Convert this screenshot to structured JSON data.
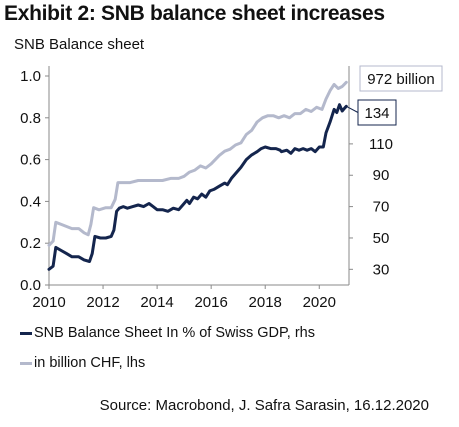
{
  "exhibit_title": "Exhibit 2: SNB balance sheet increases",
  "source": "Source: Macrobond, J. Safra Sarasin, 16.12.2020",
  "colors": {
    "navy": "#14254d",
    "light": "#b4b9cc",
    "axis": "#8a8a8a"
  },
  "chart_data": {
    "type": "line",
    "title": "SNB Balance sheet",
    "x_ticks": [
      2010,
      2012,
      2014,
      2016,
      2018,
      2020
    ],
    "xlim": [
      2010,
      2021.1
    ],
    "y_left": {
      "lim": [
        0,
        1.0
      ],
      "ticks": [
        "0.0",
        "0.2",
        "0.4",
        "0.6",
        "0.8",
        "1.0"
      ]
    },
    "y_right": {
      "lim": [
        20,
        153.3
      ],
      "ticks": [
        30,
        50,
        70,
        90,
        110
      ]
    },
    "right_labels": {
      "light": "972 billion",
      "navy": "134"
    },
    "legend": [
      "SNB Balance Sheet In % of Swiss GDP, rhs",
      "in billion CHF, lhs"
    ],
    "series": [
      {
        "name": "SNB Balance Sheet In % of Swiss GDP, rhs",
        "axis": "right",
        "color": "#14254d",
        "points": [
          [
            2010.0,
            30
          ],
          [
            2010.15,
            32
          ],
          [
            2010.25,
            44
          ],
          [
            2010.45,
            42
          ],
          [
            2010.65,
            40
          ],
          [
            2010.85,
            38
          ],
          [
            2011.1,
            38
          ],
          [
            2011.3,
            36
          ],
          [
            2011.5,
            35
          ],
          [
            2011.6,
            40
          ],
          [
            2011.7,
            51
          ],
          [
            2011.9,
            50
          ],
          [
            2012.1,
            50
          ],
          [
            2012.3,
            51
          ],
          [
            2012.4,
            55
          ],
          [
            2012.5,
            67
          ],
          [
            2012.6,
            69
          ],
          [
            2012.75,
            70
          ],
          [
            2012.9,
            69
          ],
          [
            2013.1,
            70
          ],
          [
            2013.3,
            71
          ],
          [
            2013.5,
            70
          ],
          [
            2013.7,
            72
          ],
          [
            2013.85,
            70
          ],
          [
            2014.0,
            68
          ],
          [
            2014.2,
            68
          ],
          [
            2014.4,
            67
          ],
          [
            2014.6,
            69
          ],
          [
            2014.8,
            68
          ],
          [
            2014.95,
            71
          ],
          [
            2015.1,
            74
          ],
          [
            2015.2,
            72
          ],
          [
            2015.35,
            76
          ],
          [
            2015.5,
            75
          ],
          [
            2015.65,
            78
          ],
          [
            2015.8,
            76
          ],
          [
            2015.95,
            80
          ],
          [
            2016.1,
            81
          ],
          [
            2016.3,
            83
          ],
          [
            2016.5,
            85
          ],
          [
            2016.6,
            84
          ],
          [
            2016.75,
            88
          ],
          [
            2016.95,
            92
          ],
          [
            2017.1,
            95
          ],
          [
            2017.3,
            100
          ],
          [
            2017.5,
            103
          ],
          [
            2017.7,
            105
          ],
          [
            2017.85,
            107
          ],
          [
            2018.0,
            108
          ],
          [
            2018.2,
            107
          ],
          [
            2018.4,
            107
          ],
          [
            2018.55,
            106
          ],
          [
            2018.6,
            105
          ],
          [
            2018.8,
            106
          ],
          [
            2018.95,
            104
          ],
          [
            2019.1,
            107
          ],
          [
            2019.25,
            106
          ],
          [
            2019.4,
            107
          ],
          [
            2019.55,
            106
          ],
          [
            2019.7,
            107
          ],
          [
            2019.85,
            105
          ],
          [
            2020.0,
            108
          ],
          [
            2020.15,
            108
          ],
          [
            2020.25,
            117
          ],
          [
            2020.4,
            124
          ],
          [
            2020.55,
            132
          ],
          [
            2020.65,
            130
          ],
          [
            2020.75,
            135
          ],
          [
            2020.85,
            131
          ],
          [
            2020.95,
            133
          ],
          [
            2021.0,
            134
          ]
        ]
      },
      {
        "name": "in billion CHF, lhs",
        "axis": "left",
        "color": "#b4b9cc",
        "points": [
          [
            2010.0,
            0.19
          ],
          [
            2010.15,
            0.21
          ],
          [
            2010.25,
            0.3
          ],
          [
            2010.45,
            0.29
          ],
          [
            2010.65,
            0.28
          ],
          [
            2010.85,
            0.27
          ],
          [
            2011.1,
            0.27
          ],
          [
            2011.3,
            0.25
          ],
          [
            2011.45,
            0.24
          ],
          [
            2011.55,
            0.29
          ],
          [
            2011.65,
            0.37
          ],
          [
            2011.85,
            0.36
          ],
          [
            2012.1,
            0.37
          ],
          [
            2012.3,
            0.37
          ],
          [
            2012.45,
            0.41
          ],
          [
            2012.55,
            0.49
          ],
          [
            2012.75,
            0.49
          ],
          [
            2013.0,
            0.49
          ],
          [
            2013.3,
            0.5
          ],
          [
            2013.6,
            0.5
          ],
          [
            2013.9,
            0.5
          ],
          [
            2014.2,
            0.5
          ],
          [
            2014.5,
            0.51
          ],
          [
            2014.8,
            0.51
          ],
          [
            2015.0,
            0.52
          ],
          [
            2015.2,
            0.54
          ],
          [
            2015.4,
            0.55
          ],
          [
            2015.6,
            0.57
          ],
          [
            2015.8,
            0.56
          ],
          [
            2016.0,
            0.58
          ],
          [
            2016.3,
            0.62
          ],
          [
            2016.5,
            0.64
          ],
          [
            2016.7,
            0.65
          ],
          [
            2016.9,
            0.67
          ],
          [
            2017.1,
            0.68
          ],
          [
            2017.3,
            0.72
          ],
          [
            2017.5,
            0.74
          ],
          [
            2017.7,
            0.78
          ],
          [
            2017.9,
            0.8
          ],
          [
            2018.1,
            0.81
          ],
          [
            2018.3,
            0.81
          ],
          [
            2018.5,
            0.8
          ],
          [
            2018.7,
            0.81
          ],
          [
            2018.9,
            0.8
          ],
          [
            2019.1,
            0.82
          ],
          [
            2019.3,
            0.82
          ],
          [
            2019.5,
            0.84
          ],
          [
            2019.7,
            0.83
          ],
          [
            2019.9,
            0.85
          ],
          [
            2020.1,
            0.84
          ],
          [
            2020.25,
            0.89
          ],
          [
            2020.4,
            0.93
          ],
          [
            2020.55,
            0.96
          ],
          [
            2020.7,
            0.94
          ],
          [
            2020.85,
            0.95
          ],
          [
            2021.0,
            0.97
          ]
        ]
      }
    ]
  }
}
